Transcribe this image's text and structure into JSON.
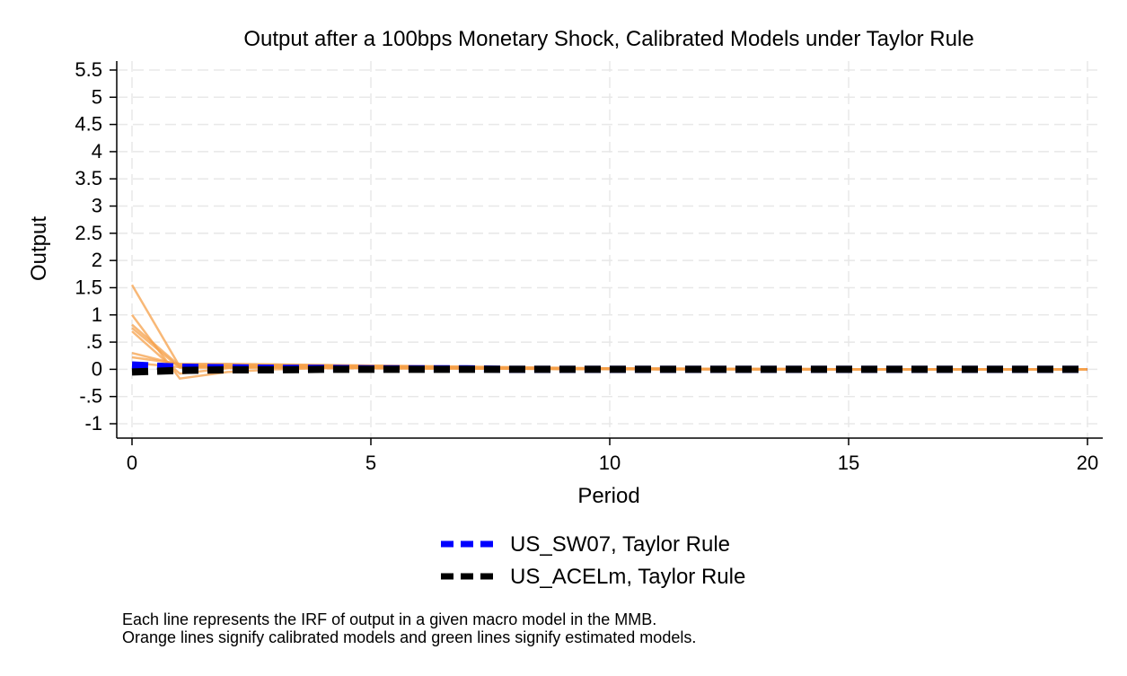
{
  "chart_data": {
    "type": "line",
    "title": "Output after a 100bps Monetary Shock, Calibrated Models under Taylor Rule",
    "xlabel": "Period",
    "ylabel": "Output",
    "xlim": [
      0,
      20
    ],
    "ylim": [
      -1,
      5.5
    ],
    "x_ticks": [
      0,
      5,
      10,
      15,
      20
    ],
    "x_tick_labels": [
      "0",
      "5",
      "10",
      "15",
      "20"
    ],
    "y_ticks": [
      -1,
      -0.5,
      0,
      0.5,
      1,
      1.5,
      2,
      2.5,
      3,
      3.5,
      4,
      4.5,
      5,
      5.5
    ],
    "y_tick_labels": [
      "-1",
      "-.5",
      "0",
      ".5",
      "1",
      "1.5",
      "2",
      "2.5",
      "3",
      "3.5",
      "4",
      "4.5",
      "5",
      "5.5"
    ],
    "grid": true,
    "legend_position": "bottom",
    "calibrated_color": "#f5a04a",
    "calibrated_series": [
      {
        "x": [
          0,
          1,
          2,
          3,
          4,
          5,
          6,
          7,
          8,
          9,
          10,
          11,
          12,
          13,
          14,
          15,
          16,
          17,
          18,
          19,
          20
        ],
        "values": [
          1.55,
          0.05,
          0.05,
          0.04,
          0.04,
          0.03,
          0.03,
          0.02,
          0.02,
          0.01,
          0.01,
          0.01,
          0.01,
          0,
          0,
          0,
          0,
          0,
          0,
          0,
          0
        ]
      },
      {
        "x": [
          0,
          1,
          2,
          3,
          4,
          5,
          6,
          7,
          8,
          9,
          10,
          11,
          12,
          13,
          14,
          15,
          16,
          17,
          18,
          19,
          20
        ],
        "values": [
          1.0,
          -0.17,
          -0.05,
          0,
          0.02,
          0.02,
          0.01,
          0.01,
          0.01,
          0,
          0,
          0,
          0,
          0,
          0,
          0,
          0,
          0,
          0,
          0,
          0
        ]
      },
      {
        "x": [
          0,
          1,
          2,
          3,
          4,
          5,
          6,
          7,
          8,
          9,
          10,
          11,
          12,
          13,
          14,
          15,
          16,
          17,
          18,
          19,
          20
        ],
        "values": [
          0.82,
          0.06,
          0.07,
          0.07,
          0.07,
          0.06,
          0.05,
          0.04,
          0.03,
          0.02,
          0.02,
          0.01,
          0.01,
          0.01,
          0,
          0,
          0,
          0,
          0,
          0,
          0
        ]
      },
      {
        "x": [
          0,
          1,
          2,
          3,
          4,
          5,
          6,
          7,
          8,
          9,
          10,
          11,
          12,
          13,
          14,
          15,
          16,
          17,
          18,
          19,
          20
        ],
        "values": [
          0.76,
          0.03,
          0.03,
          0.03,
          0.03,
          0.02,
          0.02,
          0.02,
          0.01,
          0.01,
          0.01,
          0,
          0,
          0,
          0,
          0,
          0,
          0,
          0,
          0,
          0
        ]
      },
      {
        "x": [
          0,
          1,
          2,
          3,
          4,
          5,
          6,
          7,
          8,
          9,
          10,
          11,
          12,
          13,
          14,
          15,
          16,
          17,
          18,
          19,
          20
        ],
        "values": [
          0.7,
          -0.08,
          0.02,
          0.05,
          0.05,
          0.04,
          0.03,
          0.02,
          0.02,
          0.01,
          0.01,
          0,
          0,
          0,
          0,
          0,
          0,
          0,
          0,
          0,
          0
        ]
      },
      {
        "x": [
          0,
          1,
          2,
          3,
          4,
          5,
          6,
          7,
          8,
          9,
          10,
          11,
          12,
          13,
          14,
          15,
          16,
          17,
          18,
          19,
          20
        ],
        "values": [
          0.3,
          0.08,
          0.08,
          0.08,
          0.07,
          0.06,
          0.05,
          0.04,
          0.03,
          0.02,
          0.02,
          0.01,
          0.01,
          0,
          0,
          0,
          0,
          0,
          0,
          0,
          0
        ]
      },
      {
        "x": [
          0,
          1,
          2,
          3,
          4,
          5,
          6,
          7,
          8,
          9,
          10,
          11,
          12,
          13,
          14,
          15,
          16,
          17,
          18,
          19,
          20
        ],
        "values": [
          0.22,
          0.1,
          0.1,
          0.09,
          0.08,
          0.07,
          0.06,
          0.05,
          0.04,
          0.03,
          0.02,
          0.02,
          0.01,
          0.01,
          0.01,
          0,
          0,
          0,
          0,
          0,
          0
        ]
      },
      {
        "x": [
          0,
          1,
          2,
          3,
          4,
          5,
          6,
          7,
          8,
          9,
          10,
          11,
          12,
          13,
          14,
          15,
          16,
          17,
          18,
          19,
          20
        ],
        "values": [
          0.12,
          0.04,
          0.04,
          0.04,
          0.03,
          0.03,
          0.02,
          0.02,
          0.01,
          0.01,
          0.01,
          0,
          0,
          0,
          0,
          0,
          0,
          0,
          0,
          0,
          0
        ]
      }
    ],
    "series": [
      {
        "name": "US_SW07, Taylor Rule",
        "color": "#0000ff",
        "dash": "dashed",
        "x": [
          0,
          1,
          2,
          3,
          4,
          5,
          6,
          7,
          8,
          9,
          10,
          11,
          12,
          13,
          14,
          15,
          16,
          17,
          18,
          19,
          20
        ],
        "values": [
          0.08,
          0.04,
          0.03,
          0.02,
          0.02,
          0.01,
          0.01,
          0.01,
          0,
          0,
          0,
          0,
          0,
          0,
          0,
          0,
          0,
          0,
          0,
          0,
          0
        ]
      },
      {
        "name": "US_ACELm, Taylor Rule",
        "color": "#000000",
        "dash": "dashed",
        "x": [
          0,
          1,
          2,
          3,
          4,
          5,
          6,
          7,
          8,
          9,
          10,
          11,
          12,
          13,
          14,
          15,
          16,
          17,
          18,
          19,
          20
        ],
        "values": [
          -0.05,
          -0.02,
          -0.01,
          -0.01,
          0,
          0,
          0,
          0,
          0,
          0,
          0,
          0,
          0,
          0,
          0,
          0,
          0,
          0,
          0,
          0,
          0
        ]
      }
    ],
    "notes": [
      "Each line represents the IRF of output in a given macro model in the MMB.",
      "Orange lines signify calibrated models and green lines signify estimated models."
    ]
  }
}
